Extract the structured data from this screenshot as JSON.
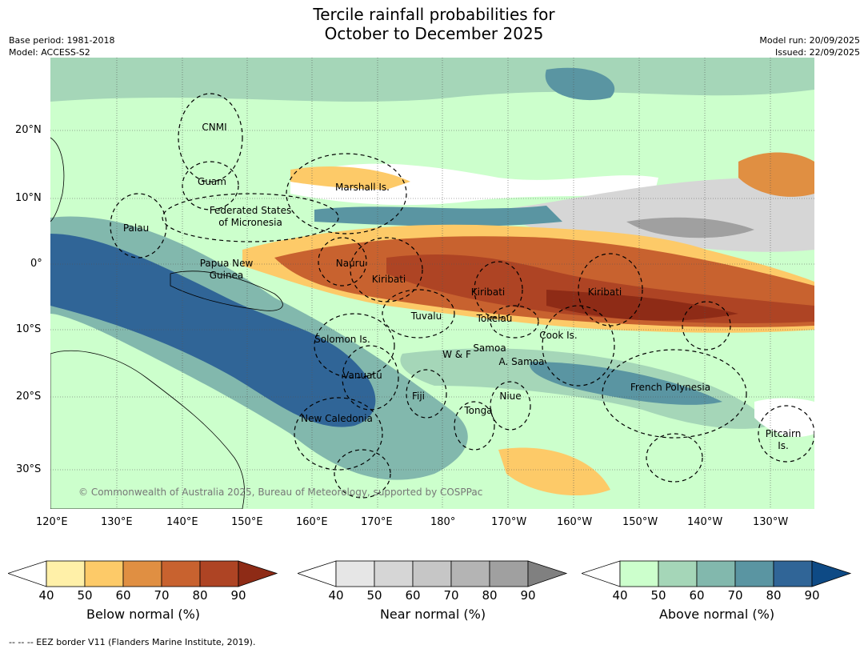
{
  "header": {
    "title_line1": "Tercile rainfall probabilities for",
    "title_line2": "October to December 2025",
    "base_period": "Base period: 1981-2018",
    "model": "Model: ACCESS-S2",
    "model_run": "Model run: 20/09/2025",
    "issued": "Issued: 22/09/2025"
  },
  "map": {
    "lat_labels": [
      "20°N",
      "10°N",
      "0°",
      "10°S",
      "20°S",
      "30°S"
    ],
    "lon_labels": [
      "120°E",
      "130°E",
      "140°E",
      "150°E",
      "160°E",
      "170°E",
      "180°",
      "170°W",
      "160°W",
      "150°W",
      "140°W",
      "130°W"
    ],
    "regions": [
      "CNMI",
      "Guam",
      "Marshall Is.",
      "Federated States",
      "of Micronesia",
      "Palau",
      "Papua New",
      "Guinea",
      "Nauru",
      "Kiribati",
      "Kiribati",
      "Kiribati",
      "Tuvalu",
      "Tokelau",
      "Cook Is.",
      "Solomon Is.",
      "Samoa",
      "W & F",
      "A. Samoa",
      "Vanuatu",
      "Fiji",
      "Niue",
      "French Polynesia",
      "Tonga",
      "New Caledonia",
      "Pitcairn",
      "Is."
    ],
    "copyright": "© Commonwealth of Australia 2025, Bureau of Meteorology, supported by COSPPac"
  },
  "colorbars": [
    {
      "label": "Below normal (%)",
      "ticks": [
        "40",
        "50",
        "60",
        "70",
        "80",
        "90"
      ],
      "colors": [
        "#ffffff",
        "#fff0a8",
        "#fdca68",
        "#e08f42",
        "#c8622f",
        "#ae4424",
        "#8e2b16"
      ]
    },
    {
      "label": "Near normal (%)",
      "ticks": [
        "40",
        "50",
        "60",
        "70",
        "80",
        "90"
      ],
      "colors": [
        "#ffffff",
        "#e6e6e6",
        "#d6d6d6",
        "#c6c6c6",
        "#b4b4b4",
        "#a0a0a0",
        "#808080"
      ]
    },
    {
      "label": "Above normal (%)",
      "ticks": [
        "40",
        "50",
        "60",
        "70",
        "80",
        "90"
      ],
      "colors": [
        "#ffffff",
        "#ccffcc",
        "#a5d6b8",
        "#82b8ad",
        "#5a95a2",
        "#306597",
        "#0e4a85"
      ]
    }
  ],
  "footer": {
    "eez_note": "--  --  -- EEZ border V11 (Flanders Marine Institute, 2019)."
  }
}
